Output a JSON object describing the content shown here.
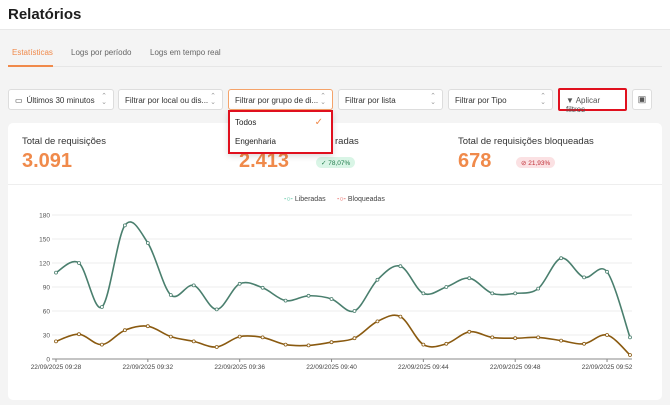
{
  "header": {
    "title": "Relatórios"
  },
  "tabs": [
    {
      "label": "Estatísticas",
      "active": true
    },
    {
      "label": "Logs por período"
    },
    {
      "label": "Logs em tempo real"
    }
  ],
  "filters": {
    "time": "Últimos 30 minutos",
    "local": "Filtrar por local ou dis...",
    "group": "Filtrar por grupo de di...",
    "list": "Filtrar por lista",
    "type": "Filtrar por Tipo",
    "apply": "Aplicar filtros",
    "group_options": [
      {
        "label": "Todos",
        "selected": true
      },
      {
        "label": "Engenharia"
      }
    ]
  },
  "stats": [
    {
      "label": "Total de requisições",
      "value": "3.091"
    },
    {
      "label": "Total de requisições liberadas",
      "visible_label": "radas",
      "value": "2.413",
      "badge": "78,07%"
    },
    {
      "label": "Total de requisições bloqueadas",
      "value": "678",
      "badge": "21,93%"
    }
  ],
  "chart_data": {
    "type": "line",
    "x": [
      "09:28",
      "09:29",
      "09:30",
      "09:31",
      "09:32",
      "09:33",
      "09:34",
      "09:35",
      "09:36",
      "09:37",
      "09:38",
      "09:39",
      "09:40",
      "09:41",
      "09:42",
      "09:43",
      "09:44",
      "09:45",
      "09:46",
      "09:47",
      "09:48",
      "09:49",
      "09:50",
      "09:51",
      "09:52",
      "09:53"
    ],
    "xtick_labels": [
      "22/09/2025 09:28",
      "22/09/2025 09:32",
      "22/09/2025 09:36",
      "22/09/2025 09:40",
      "22/09/2025 09:44",
      "22/09/2025 09:48",
      "22/09/2025 09:52"
    ],
    "yticks": [
      0,
      30,
      60,
      90,
      120,
      150,
      180
    ],
    "ylim": [
      0,
      180
    ],
    "series": [
      {
        "name": "Liberadas",
        "color": "#4a7f6e",
        "legend_color": "#2bb58a",
        "values": [
          108,
          120,
          65,
          167,
          145,
          80,
          92,
          62,
          94,
          89,
          73,
          79,
          75,
          60,
          99,
          116,
          82,
          90,
          101,
          82,
          82,
          88,
          126,
          102,
          109,
          27
        ]
      },
      {
        "name": "Bloqueadas",
        "color": "#8a5a10",
        "legend_color": "#e0403a",
        "values": [
          22,
          31,
          18,
          36,
          41,
          28,
          22,
          15,
          28,
          27,
          18,
          17,
          21,
          26,
          47,
          53,
          18,
          19,
          34,
          27,
          26,
          27,
          23,
          19,
          30,
          5
        ]
      }
    ],
    "legend": "top-center",
    "grid": true
  }
}
